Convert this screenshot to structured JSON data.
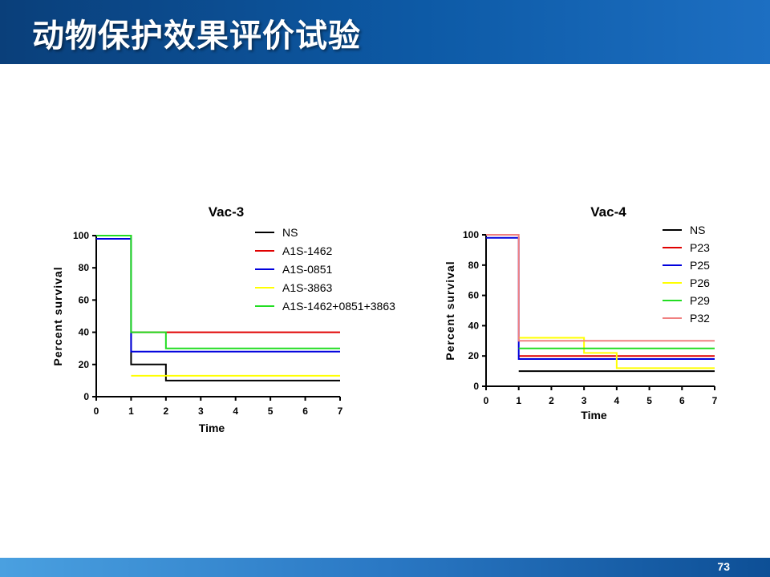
{
  "slide": {
    "title": "动物保护效果评价试验",
    "page_number": "73"
  },
  "chart_data": [
    {
      "type": "line",
      "title": "Vac-3",
      "xlabel": "Time",
      "ylabel": "Percent survival",
      "xlim": [
        0,
        7
      ],
      "ylim": [
        0,
        100
      ],
      "xticks": [
        "0",
        "1",
        "2",
        "3",
        "4",
        "5",
        "6",
        "7"
      ],
      "yticks": [
        "0",
        "20",
        "40",
        "60",
        "80",
        "100"
      ],
      "legend_position": "top-right",
      "series": [
        {
          "name": "NS",
          "color": "#000000",
          "x": [
            0,
            1,
            1,
            2,
            2,
            7
          ],
          "y": [
            100,
            100,
            20,
            20,
            10,
            10
          ]
        },
        {
          "name": "A1S-1462",
          "color": "#e00000",
          "x": [
            1,
            7
          ],
          "y": [
            40,
            40
          ]
        },
        {
          "name": "A1S-0851",
          "color": "#0000dd",
          "x": [
            0,
            1,
            1,
            7
          ],
          "y": [
            98,
            98,
            28,
            28
          ]
        },
        {
          "name": "A1S-3863",
          "color": "#ffff00",
          "x": [
            1,
            7
          ],
          "y": [
            13,
            13
          ]
        },
        {
          "name": "A1S-1462+0851+3863",
          "color": "#22dd22",
          "x": [
            0,
            1,
            1,
            2,
            2,
            7
          ],
          "y": [
            100,
            100,
            40,
            40,
            30,
            30
          ]
        }
      ]
    },
    {
      "type": "line",
      "title": "Vac-4",
      "xlabel": "Time",
      "ylabel": "Percent survival",
      "xlim": [
        0,
        7
      ],
      "ylim": [
        0,
        100
      ],
      "xticks": [
        "0",
        "1",
        "2",
        "3",
        "4",
        "5",
        "6",
        "7"
      ],
      "yticks": [
        "0",
        "20",
        "40",
        "60",
        "80",
        "100"
      ],
      "legend_position": "top-right",
      "series": [
        {
          "name": "NS",
          "color": "#000000",
          "x": [
            1,
            7
          ],
          "y": [
            10,
            10
          ]
        },
        {
          "name": "P23",
          "color": "#e00000",
          "x": [
            1,
            7
          ],
          "y": [
            20,
            20
          ]
        },
        {
          "name": "P25",
          "color": "#0000dd",
          "x": [
            0,
            1,
            1,
            7
          ],
          "y": [
            98,
            98,
            18,
            18
          ]
        },
        {
          "name": "P26",
          "color": "#ffff00",
          "x": [
            1,
            3,
            3,
            4,
            4,
            7
          ],
          "y": [
            32,
            32,
            22,
            22,
            12,
            12
          ]
        },
        {
          "name": "P29",
          "color": "#22dd22",
          "x": [
            1,
            7
          ],
          "y": [
            25,
            25
          ]
        },
        {
          "name": "P32",
          "color": "#f08080",
          "x": [
            0,
            1,
            1,
            7
          ],
          "y": [
            100,
            100,
            30,
            30
          ]
        }
      ]
    }
  ]
}
